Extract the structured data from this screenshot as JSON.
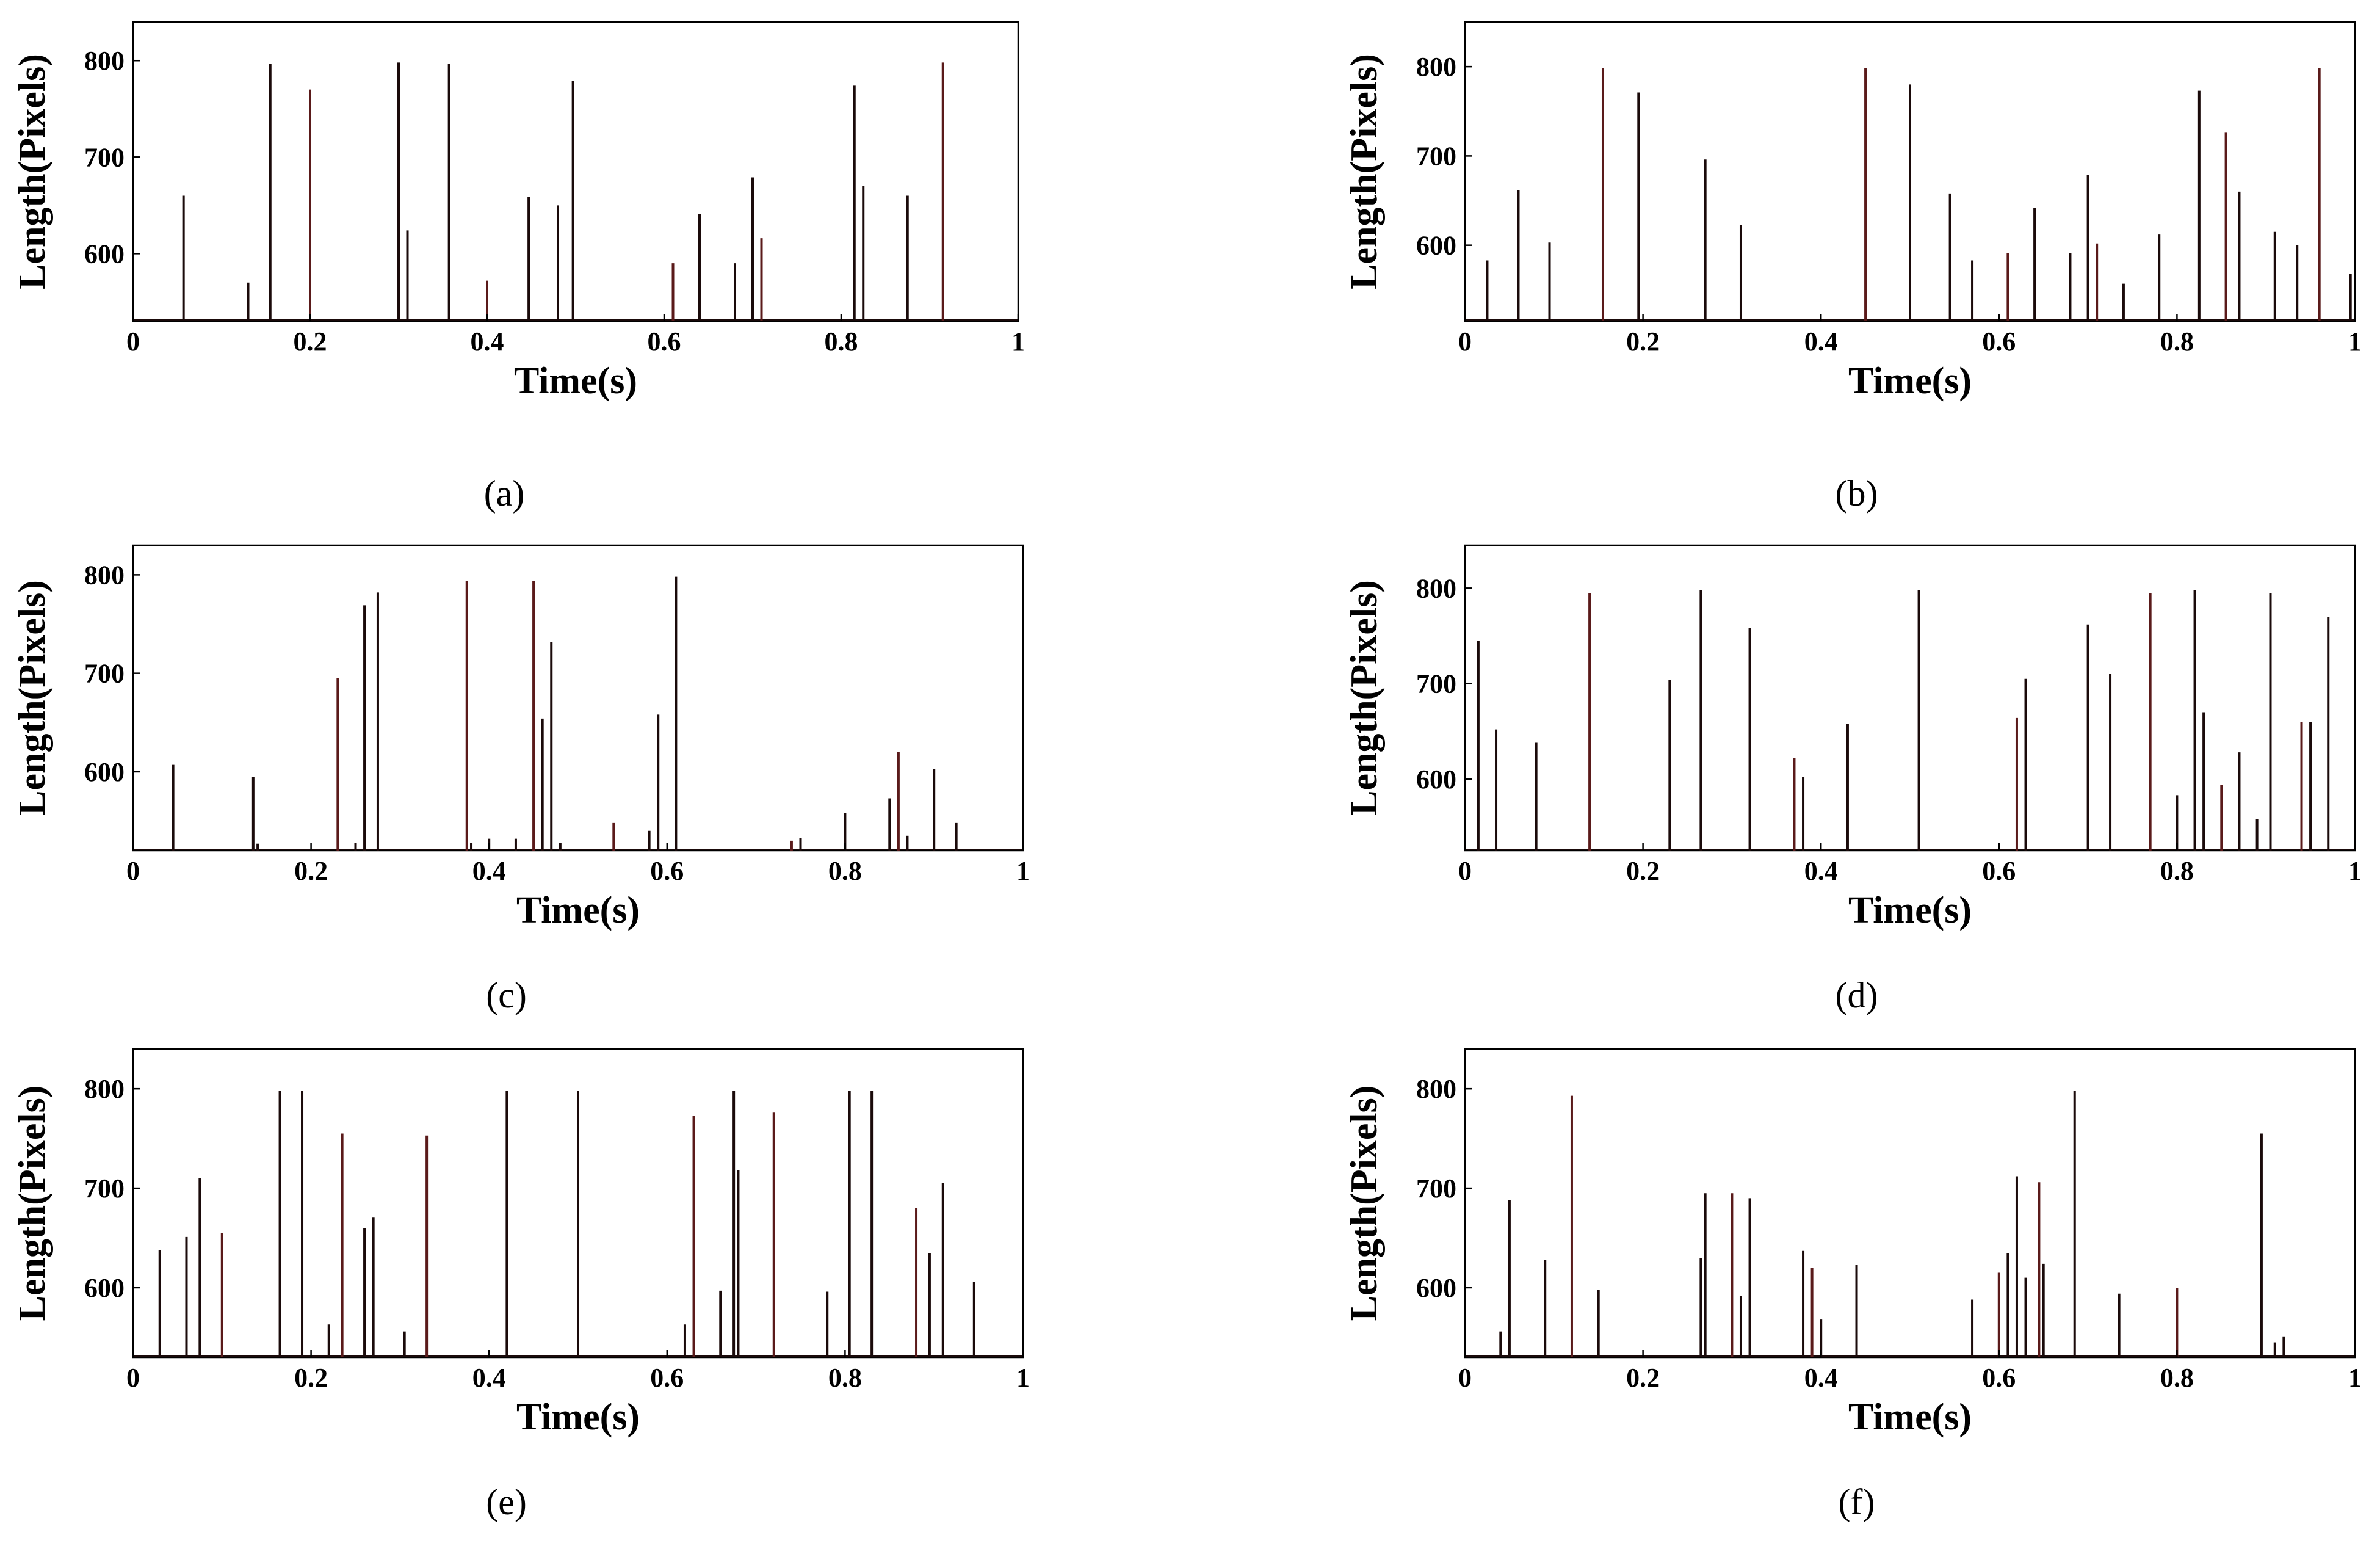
{
  "figure": {
    "spike_color": "#1a0a0a",
    "spike_color_alt": "#5a1a1a"
  },
  "chart_data": [
    {
      "type": "bar",
      "panel": "(a)",
      "title": "",
      "xlabel": "Time(s)",
      "ylabel": "Length(Pixels)",
      "xlim": [
        0,
        1
      ],
      "ylim": [
        530,
        840
      ],
      "xticks": [
        0,
        0.2,
        0.4,
        0.6,
        0.8,
        1
      ],
      "xtick_labels": [
        "0",
        "0.2",
        "0.4",
        "0.6",
        "0.8",
        "1"
      ],
      "yticks": [
        600,
        700,
        800
      ],
      "ytick_labels": [
        "600",
        "700",
        "800"
      ],
      "x": [
        0.057,
        0.13,
        0.155,
        0.2,
        0.3,
        0.31,
        0.357,
        0.4,
        0.447,
        0.48,
        0.497,
        0.61,
        0.64,
        0.68,
        0.7,
        0.71,
        0.815,
        0.825,
        0.875,
        0.915
      ],
      "values": [
        660,
        570,
        797,
        770,
        798,
        624,
        797,
        572,
        659,
        650,
        779,
        590,
        641,
        590,
        679,
        616,
        774,
        670,
        660,
        798
      ]
    },
    {
      "type": "bar",
      "panel": "(b)",
      "title": "",
      "xlabel": "Time(s)",
      "ylabel": "Length(Pixels)",
      "xlim": [
        0,
        1
      ],
      "ylim": [
        515,
        850
      ],
      "xticks": [
        0,
        0.2,
        0.4,
        0.6,
        0.8,
        1
      ],
      "xtick_labels": [
        "0",
        "0.2",
        "0.4",
        "0.6",
        "0.8",
        "1"
      ],
      "yticks": [
        600,
        700,
        800
      ],
      "ytick_labels": [
        "600",
        "700",
        "800"
      ],
      "x": [
        0.025,
        0.06,
        0.095,
        0.155,
        0.195,
        0.27,
        0.31,
        0.45,
        0.5,
        0.545,
        0.57,
        0.61,
        0.64,
        0.68,
        0.7,
        0.71,
        0.74,
        0.78,
        0.825,
        0.855,
        0.87,
        0.91,
        0.935,
        0.96,
        0.995
      ],
      "values": [
        583,
        662,
        603,
        798,
        771,
        696,
        623,
        798,
        780,
        658,
        583,
        591,
        642,
        591,
        679,
        602,
        557,
        612,
        773,
        726,
        660,
        615,
        600,
        798,
        568
      ]
    },
    {
      "type": "bar",
      "panel": "(c)",
      "title": "",
      "xlabel": "Time(s)",
      "ylabel": "Length(Pixels)",
      "xlim": [
        0,
        1
      ],
      "ylim": [
        520,
        830
      ],
      "xticks": [
        0,
        0.2,
        0.4,
        0.6,
        0.8,
        1
      ],
      "xtick_labels": [
        "0",
        "0.2",
        "0.4",
        "0.6",
        "0.8",
        "1"
      ],
      "yticks": [
        600,
        700,
        800
      ],
      "ytick_labels": [
        "600",
        "700",
        "800"
      ],
      "x": [
        0.045,
        0.135,
        0.14,
        0.23,
        0.25,
        0.26,
        0.275,
        0.375,
        0.38,
        0.4,
        0.43,
        0.45,
        0.46,
        0.47,
        0.48,
        0.54,
        0.58,
        0.59,
        0.61,
        0.74,
        0.75,
        0.8,
        0.85,
        0.86,
        0.87,
        0.9,
        0.925
      ],
      "values": [
        607,
        595,
        527,
        695,
        528,
        769,
        782,
        794,
        528,
        532,
        532,
        794,
        654,
        732,
        528,
        548,
        540,
        658,
        798,
        530,
        533,
        558,
        573,
        620,
        535,
        603,
        548
      ]
    },
    {
      "type": "bar",
      "panel": "(d)",
      "title": "",
      "xlabel": "Time(s)",
      "ylabel": "Length(Pixels)",
      "xlim": [
        0,
        1
      ],
      "ylim": [
        525,
        845
      ],
      "xticks": [
        0,
        0.2,
        0.4,
        0.6,
        0.8,
        1
      ],
      "xtick_labels": [
        "0",
        "0.2",
        "0.4",
        "0.6",
        "0.8",
        "1"
      ],
      "yticks": [
        600,
        700,
        800
      ],
      "ytick_labels": [
        "600",
        "700",
        "800"
      ],
      "x": [
        0.015,
        0.035,
        0.08,
        0.14,
        0.23,
        0.265,
        0.32,
        0.37,
        0.38,
        0.43,
        0.51,
        0.62,
        0.63,
        0.7,
        0.725,
        0.77,
        0.8,
        0.82,
        0.83,
        0.85,
        0.87,
        0.89,
        0.905,
        0.94,
        0.95,
        0.97
      ],
      "values": [
        745,
        652,
        638,
        795,
        704,
        798,
        758,
        622,
        602,
        658,
        798,
        664,
        705,
        762,
        710,
        795,
        583,
        798,
        670,
        594,
        628,
        558,
        795,
        660,
        660,
        770
      ]
    },
    {
      "type": "bar",
      "panel": "(e)",
      "title": "",
      "xlabel": "Time(s)",
      "ylabel": "Length(Pixels)",
      "xlim": [
        0,
        1
      ],
      "ylim": [
        530,
        840
      ],
      "xticks": [
        0,
        0.2,
        0.4,
        0.6,
        0.8,
        1
      ],
      "xtick_labels": [
        "0",
        "0.2",
        "0.4",
        "0.6",
        "0.8",
        "1"
      ],
      "yticks": [
        600,
        700,
        800
      ],
      "ytick_labels": [
        "600",
        "700",
        "800"
      ],
      "x": [
        0.03,
        0.06,
        0.075,
        0.1,
        0.165,
        0.19,
        0.22,
        0.235,
        0.26,
        0.27,
        0.305,
        0.33,
        0.42,
        0.5,
        0.62,
        0.63,
        0.66,
        0.675,
        0.68,
        0.72,
        0.78,
        0.805,
        0.83,
        0.88,
        0.895,
        0.91,
        0.945
      ],
      "values": [
        638,
        651,
        710,
        655,
        798,
        798,
        563,
        755,
        660,
        671,
        556,
        753,
        798,
        798,
        563,
        773,
        597,
        798,
        718,
        776,
        596,
        798,
        798,
        680,
        635,
        705,
        606
      ]
    },
    {
      "type": "bar",
      "panel": "(f)",
      "title": "",
      "xlabel": "Time(s)",
      "ylabel": "Length(Pixels)",
      "xlim": [
        0,
        1
      ],
      "ylim": [
        530,
        840
      ],
      "xticks": [
        0,
        0.2,
        0.4,
        0.6,
        0.8,
        1
      ],
      "xtick_labels": [
        "0",
        "0.2",
        "0.4",
        "0.6",
        "0.8",
        "1"
      ],
      "yticks": [
        600,
        700,
        800
      ],
      "ytick_labels": [
        "600",
        "700",
        "800"
      ],
      "x": [
        0.04,
        0.05,
        0.09,
        0.12,
        0.15,
        0.265,
        0.27,
        0.3,
        0.31,
        0.32,
        0.38,
        0.39,
        0.4,
        0.44,
        0.57,
        0.6,
        0.61,
        0.62,
        0.63,
        0.645,
        0.65,
        0.685,
        0.735,
        0.8,
        0.895,
        0.91,
        0.92
      ],
      "values": [
        556,
        688,
        628,
        793,
        598,
        630,
        695,
        695,
        592,
        690,
        637,
        620,
        568,
        623,
        588,
        615,
        635,
        712,
        610,
        706,
        624,
        798,
        594,
        600,
        755,
        545,
        551
      ]
    }
  ]
}
